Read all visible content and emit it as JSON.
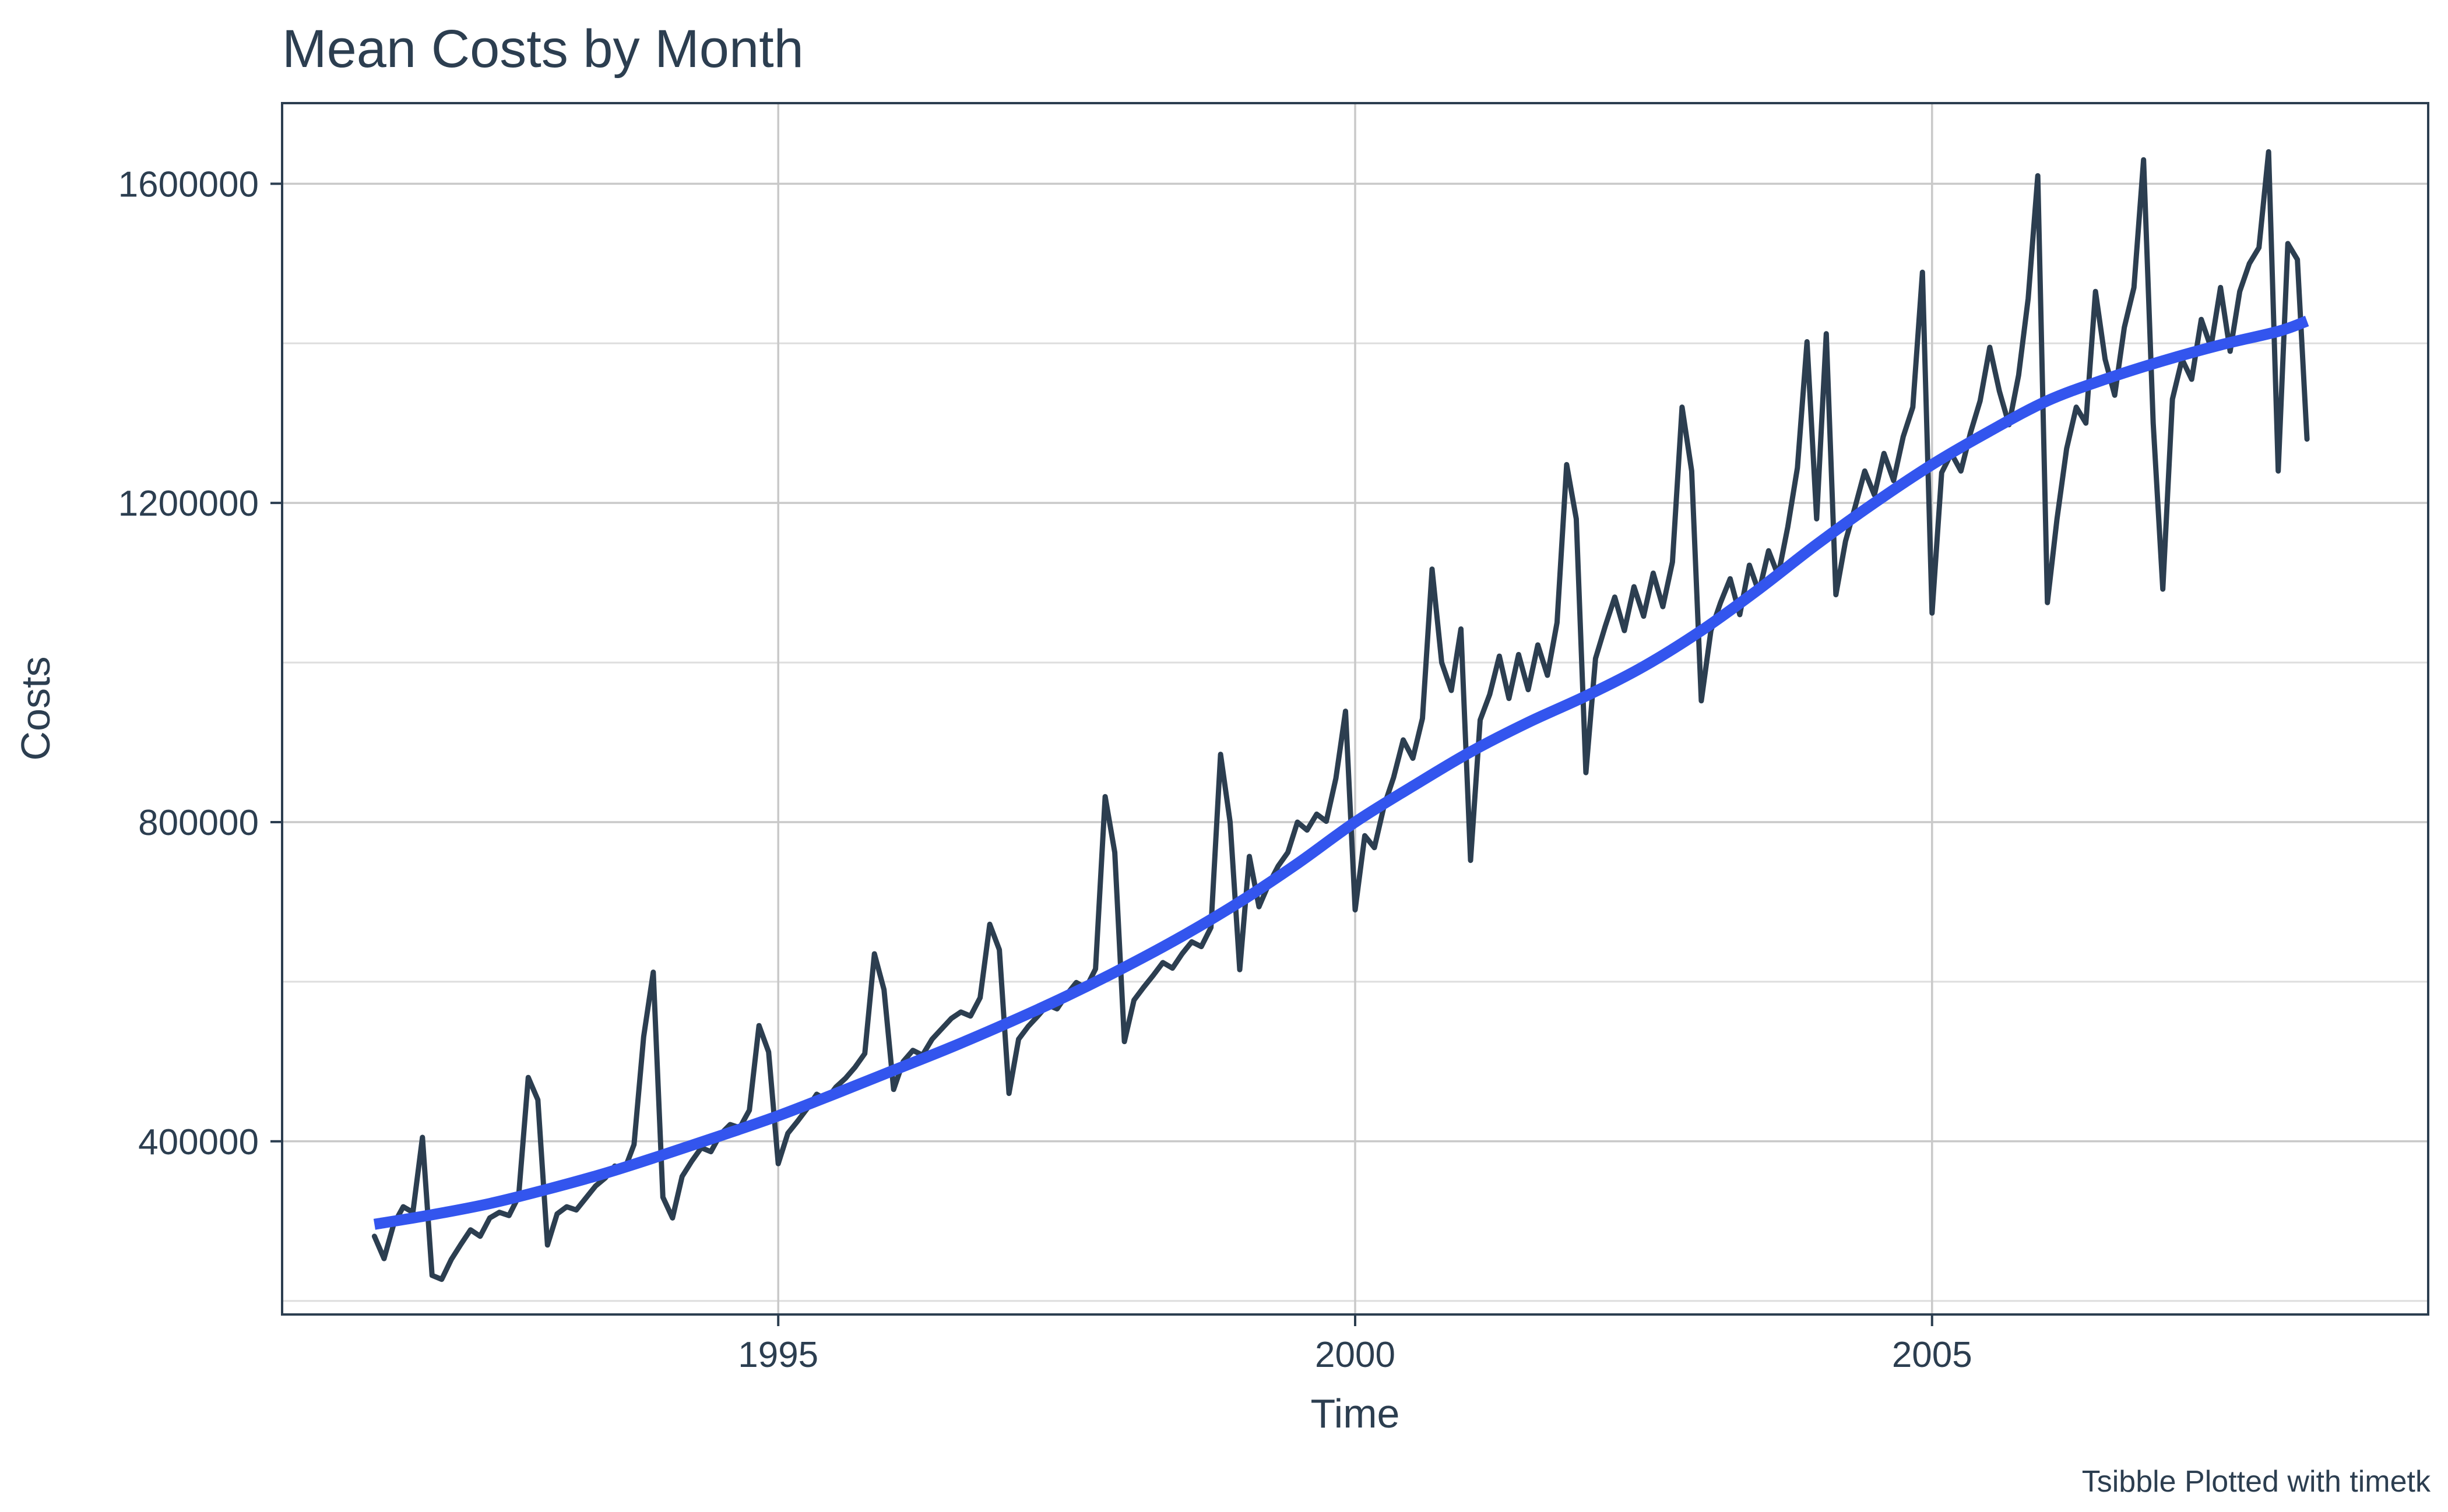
{
  "page": {
    "background_color": "#ffffff"
  },
  "header": {
    "title": "Mean Costs by Month"
  },
  "axes": {
    "x_label": "Time",
    "y_label": "Costs",
    "x_tick_labels": [
      "1995",
      "2000",
      "2005"
    ],
    "y_tick_labels": [
      "400000",
      "800000",
      "1200000",
      "1600000"
    ]
  },
  "caption": {
    "text": "Tsibble Plotted with timetk"
  },
  "colors": {
    "series_line": "#2c3e50",
    "smooth_line": "#3355EE",
    "major_grid": "#c9c9c9",
    "minor_grid": "#dedede",
    "panel_border": "#2c3e50",
    "text": "#2c3e50",
    "background": "#ffffff"
  },
  "chart_data": {
    "type": "line",
    "title": "Mean Costs by Month",
    "xlabel": "Time",
    "ylabel": "Costs",
    "grid": "on",
    "legend": "none",
    "xlim": [
      1990.7,
      2009.3
    ],
    "ylim": [
      183000,
      1701000
    ],
    "x_major_ticks": [
      1995,
      2000,
      2005
    ],
    "y_major_ticks": [
      400000,
      800000,
      1200000,
      1600000
    ],
    "y_minor_ticks": [
      200000,
      600000,
      1000000,
      1400000
    ],
    "series": [
      {
        "name": "monthly_mean_costs",
        "start": {
          "year": 1991,
          "month": 7
        },
        "frequency": "monthly",
        "values": [
          281000,
          253000,
          296000,
          318000,
          311000,
          405000,
          232000,
          227000,
          252000,
          271000,
          289000,
          281000,
          304000,
          311000,
          307000,
          331000,
          480000,
          452000,
          270000,
          309000,
          318000,
          314000,
          329000,
          344000,
          354000,
          369000,
          364000,
          396000,
          531000,
          612000,
          330000,
          304000,
          356000,
          375000,
          392000,
          387000,
          409000,
          421000,
          417000,
          439000,
          545000,
          512000,
          372000,
          410000,
          425000,
          441000,
          459000,
          452000,
          468000,
          479000,
          493000,
          510000,
          635000,
          590000,
          465000,
          500000,
          514000,
          508000,
          528000,
          541000,
          554000,
          562000,
          557000,
          580000,
          672000,
          640000,
          460000,
          528000,
          544000,
          557000,
          571000,
          566000,
          584000,
          599000,
          592000,
          616000,
          832000,
          762000,
          525000,
          577000,
          593000,
          608000,
          624000,
          617000,
          635000,
          650000,
          644000,
          668000,
          885000,
          800000,
          615000,
          757000,
          694000,
          722000,
          745000,
          762000,
          800000,
          790000,
          810000,
          801000,
          855000,
          939000,
          690000,
          783000,
          768000,
          820000,
          856000,
          903000,
          880000,
          930000,
          1117000,
          1000000,
          965000,
          1042000,
          752000,
          928000,
          960000,
          1008000,
          955000,
          1010000,
          966000,
          1022000,
          984000,
          1050000,
          1248000,
          1180000,
          862000,
          1005000,
          1045000,
          1082000,
          1040000,
          1095000,
          1058000,
          1112000,
          1070000,
          1126000,
          1320000,
          1240000,
          952000,
          1040000,
          1075000,
          1105000,
          1060000,
          1122000,
          1088000,
          1140000,
          1109000,
          1170000,
          1244000,
          1402000,
          1180000,
          1412000,
          1085000,
          1152000,
          1195000,
          1240000,
          1210000,
          1262000,
          1228000,
          1283000,
          1320000,
          1489000,
          1062000,
          1238000,
          1262000,
          1240000,
          1288000,
          1328000,
          1395000,
          1340000,
          1298000,
          1360000,
          1456000,
          1610000,
          1075000,
          1180000,
          1268000,
          1320000,
          1300000,
          1465000,
          1380000,
          1335000,
          1420000,
          1470000,
          1630000,
          1300000,
          1092000,
          1330000,
          1380000,
          1355000,
          1430000,
          1395000,
          1470000,
          1390000,
          1465000,
          1500000,
          1520000,
          1640000,
          1240000,
          1525000,
          1505000,
          1280000
        ]
      },
      {
        "name": "loess_smoother",
        "points": [
          {
            "t": 1991.5,
            "v": 296000
          },
          {
            "t": 1992.0,
            "v": 308000
          },
          {
            "t": 1992.5,
            "v": 322000
          },
          {
            "t": 1993.0,
            "v": 340000
          },
          {
            "t": 1993.5,
            "v": 360000
          },
          {
            "t": 1994.0,
            "v": 383000
          },
          {
            "t": 1994.5,
            "v": 407000
          },
          {
            "t": 1995.0,
            "v": 432000
          },
          {
            "t": 1995.5,
            "v": 460000
          },
          {
            "t": 1996.0,
            "v": 489000
          },
          {
            "t": 1996.5,
            "v": 518000
          },
          {
            "t": 1997.0,
            "v": 549000
          },
          {
            "t": 1997.5,
            "v": 582000
          },
          {
            "t": 1998.0,
            "v": 618000
          },
          {
            "t": 1998.5,
            "v": 657000
          },
          {
            "t": 1999.0,
            "v": 700000
          },
          {
            "t": 1999.5,
            "v": 748000
          },
          {
            "t": 2000.0,
            "v": 800000
          },
          {
            "t": 2000.5,
            "v": 845000
          },
          {
            "t": 2001.0,
            "v": 888000
          },
          {
            "t": 2001.5,
            "v": 925000
          },
          {
            "t": 2002.0,
            "v": 958000
          },
          {
            "t": 2002.5,
            "v": 995000
          },
          {
            "t": 2003.0,
            "v": 1040000
          },
          {
            "t": 2003.5,
            "v": 1092000
          },
          {
            "t": 2004.0,
            "v": 1148000
          },
          {
            "t": 2004.5,
            "v": 1200000
          },
          {
            "t": 2005.0,
            "v": 1248000
          },
          {
            "t": 2005.5,
            "v": 1290000
          },
          {
            "t": 2006.0,
            "v": 1328000
          },
          {
            "t": 2006.5,
            "v": 1355000
          },
          {
            "t": 2007.0,
            "v": 1378000
          },
          {
            "t": 2007.5,
            "v": 1398000
          },
          {
            "t": 2008.0,
            "v": 1415000
          },
          {
            "t": 2008.25,
            "v": 1428000
          }
        ]
      }
    ]
  }
}
